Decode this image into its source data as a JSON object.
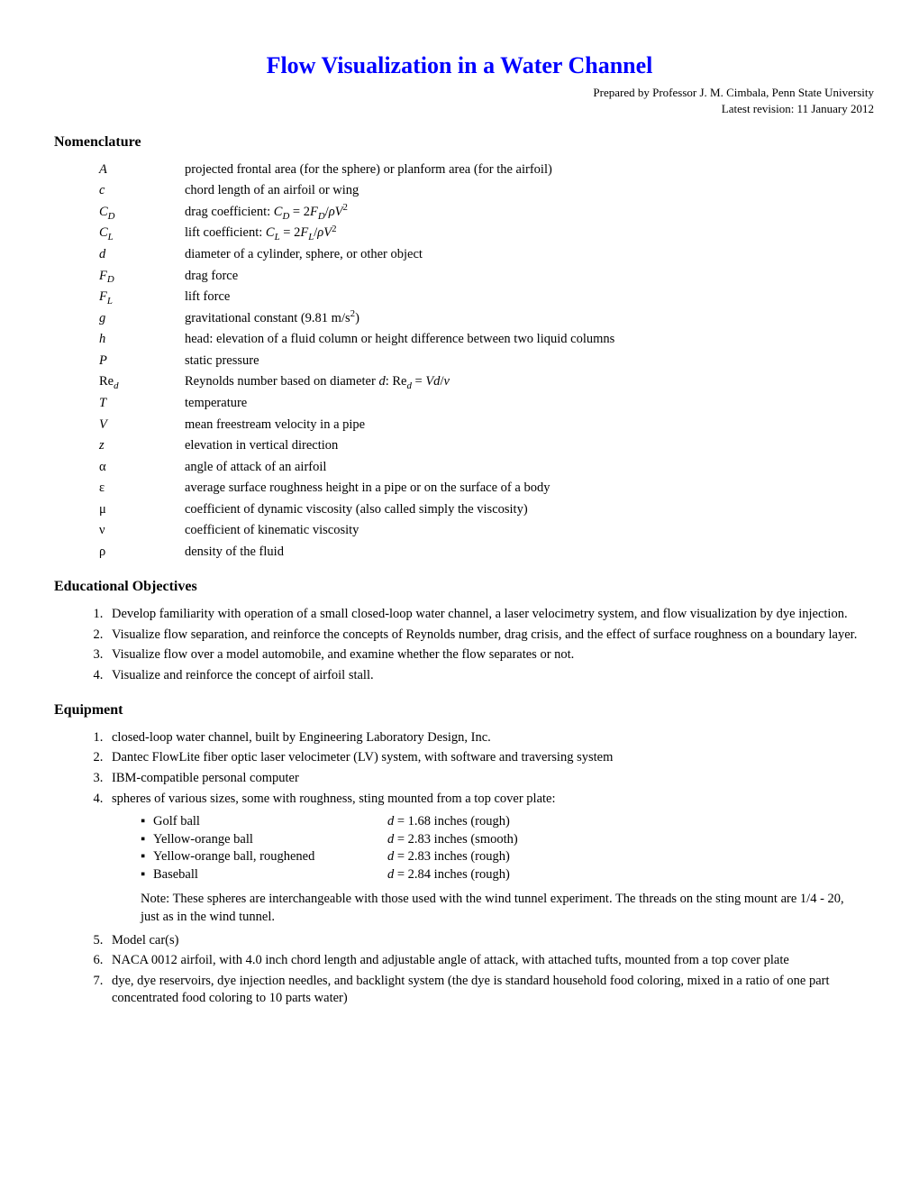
{
  "title": "Flow Visualization in a Water Channel",
  "byline1": "Prepared by Professor J. M. Cimbala, Penn State University",
  "byline2": "Latest revision: 11 January 2012",
  "section_nomenclature": "Nomenclature",
  "section_objectives": "Educational Objectives",
  "section_equipment": "Equipment",
  "nomenclature": [
    {
      "sym": "A",
      "def": "projected frontal area (for the sphere) or planform area (for the airfoil)"
    },
    {
      "sym": "c",
      "def": "chord length of an airfoil or wing"
    },
    {
      "sym_html": "C<sub>D</sub>",
      "def_html": "drag coefficient: <span class='ital'>C<sub>D</sub></span> = 2<span class='ital'>F<sub>D</sub></span>/<span class='ital'>ρV</span><sup>2</sup>"
    },
    {
      "sym_html": "C<sub>L</sub>",
      "def_html": "lift coefficient: <span class='ital'>C<sub>L</sub></span> = 2<span class='ital'>F<sub>L</sub></span>/<span class='ital'>ρV</span><sup>2</sup>"
    },
    {
      "sym": "d",
      "def": "diameter of a cylinder, sphere, or other object"
    },
    {
      "sym_html": "F<sub>D</sub>",
      "def": "drag force"
    },
    {
      "sym_html": "F<sub>L</sub>",
      "def": "lift force"
    },
    {
      "sym": "g",
      "def_html": "gravitational constant (9.81 m/s<sup>2</sup>)"
    },
    {
      "sym": "h",
      "def": "head: elevation of a fluid column or height difference between two liquid columns"
    },
    {
      "sym": "P",
      "def": "static pressure"
    },
    {
      "sym_html": "<span style='font-style:normal'>Re</span><sub>d</sub>",
      "def_html": "Reynolds number based on diameter <span class='ital'>d</span>: Re<span class='ital'><sub>d</sub></span> = <span class='ital'>Vd</span>/<span class='ital'>ν</span>"
    },
    {
      "sym": "T",
      "def": "temperature"
    },
    {
      "sym": "V",
      "def": "mean freestream velocity in a pipe"
    },
    {
      "sym": "z",
      "def": "elevation in vertical direction"
    },
    {
      "sym_html": "<span style='font-style:normal'>α</span>",
      "def": "angle of attack of an airfoil"
    },
    {
      "sym_html": "<span style='font-style:normal'>ε</span>",
      "def": "average surface roughness height in a pipe or on the surface of a body"
    },
    {
      "sym_html": "<span style='font-style:normal'>μ</span>",
      "def": "coefficient of dynamic viscosity (also called simply the viscosity)"
    },
    {
      "sym_html": "<span style='font-style:normal'>ν</span>",
      "def": "coefficient of kinematic viscosity"
    },
    {
      "sym_html": "<span style='font-style:normal'>ρ</span>",
      "def": "density of the fluid"
    }
  ],
  "objectives": [
    "Develop familiarity with operation of a small closed-loop water channel, a laser velocimetry system, and flow visualization by dye injection.",
    "Visualize flow separation, and reinforce the concepts of Reynolds number, drag crisis, and the effect of surface roughness on a boundary layer.",
    "Visualize flow over a model automobile, and examine whether the flow separates or not.",
    "Visualize and reinforce the concept of airfoil stall."
  ],
  "equipment": [
    "closed-loop water channel, built by Engineering Laboratory Design, Inc.",
    "Dantec FlowLite fiber optic laser velocimeter (LV) system, with software and traversing system",
    "IBM-compatible personal computer",
    "spheres of various sizes, some with roughness, sting mounted from a top cover plate:"
  ],
  "spheres": [
    {
      "name": "Golf ball",
      "val_html": "<span class='ital'>d</span> = 1.68 inches (rough)"
    },
    {
      "name": "Yellow-orange ball",
      "val_html": "<span class='ital'>d</span> = 2.83 inches (smooth)"
    },
    {
      "name": "Yellow-orange ball, roughened",
      "val_html": "<span class='ital'>d</span> = 2.83 inches (rough)"
    },
    {
      "name": "Baseball",
      "val_html": "<span class='ital'>d</span> = 2.84 inches (rough)"
    }
  ],
  "sphere_note": "Note: These spheres are interchangeable with those used with the wind tunnel experiment. The threads on the sting mount are 1/4 - 20, just as in the wind tunnel.",
  "equipment_rest": [
    "Model car(s)",
    "NACA 0012 airfoil, with 4.0 inch chord length and adjustable angle of attack, with attached tufts, mounted from a top cover plate",
    "dye, dye reservoirs, dye injection needles, and backlight system (the dye is standard household food coloring, mixed in a ratio of one part concentrated food coloring to 10 parts water)"
  ],
  "bullet_char": "▪"
}
